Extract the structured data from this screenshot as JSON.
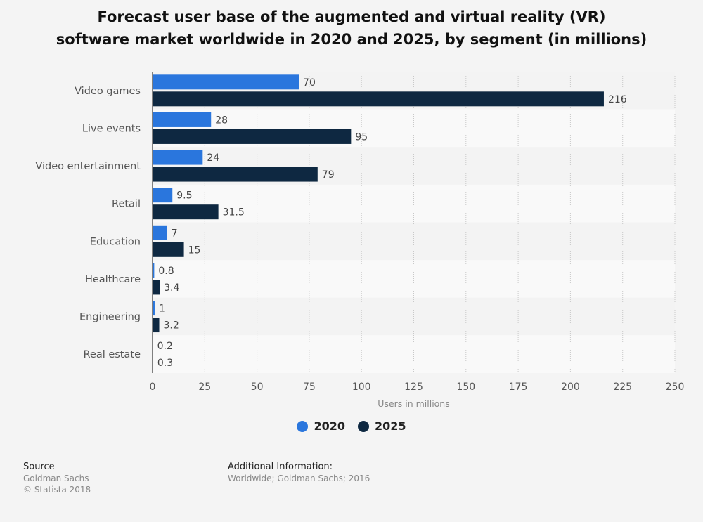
{
  "chart_data": {
    "type": "bar",
    "orientation": "horizontal",
    "title_lines": [
      "Forecast user base of the augmented and virtual reality (VR)",
      "software market worldwide in 2020 and 2025, by segment (in millions)"
    ],
    "categories": [
      "Video games",
      "Live events",
      "Video entertainment",
      "Retail",
      "Education",
      "Healthcare",
      "Engineering",
      "Real estate"
    ],
    "series": [
      {
        "name": "2020",
        "color": "#2a76dd",
        "values": [
          70,
          28,
          24,
          9.5,
          7,
          0.8,
          1,
          0.2
        ],
        "labels": [
          "70",
          "28",
          "24",
          "9.5",
          "7",
          "0.8",
          "1",
          "0.2"
        ]
      },
      {
        "name": "2025",
        "color": "#0e2841",
        "values": [
          216,
          95,
          79,
          31.5,
          15,
          3.4,
          3.2,
          0.3
        ],
        "labels": [
          "216",
          "95",
          "79",
          "31.5",
          "15",
          "3.4",
          "3.2",
          "0.3"
        ]
      }
    ],
    "xlabel": "Users in millions",
    "ylabel": "",
    "xlim": [
      0,
      250
    ],
    "xticks": [
      0,
      25,
      50,
      75,
      100,
      125,
      150,
      175,
      200,
      225,
      250
    ],
    "grid": true,
    "legend_position": "bottom"
  },
  "footer": {
    "source_heading": "Source",
    "source_lines": [
      "Goldman Sachs",
      "© Statista 2018"
    ],
    "info_heading": "Additional Information:",
    "info_text": "Worldwide; Goldman Sachs; 2016"
  }
}
